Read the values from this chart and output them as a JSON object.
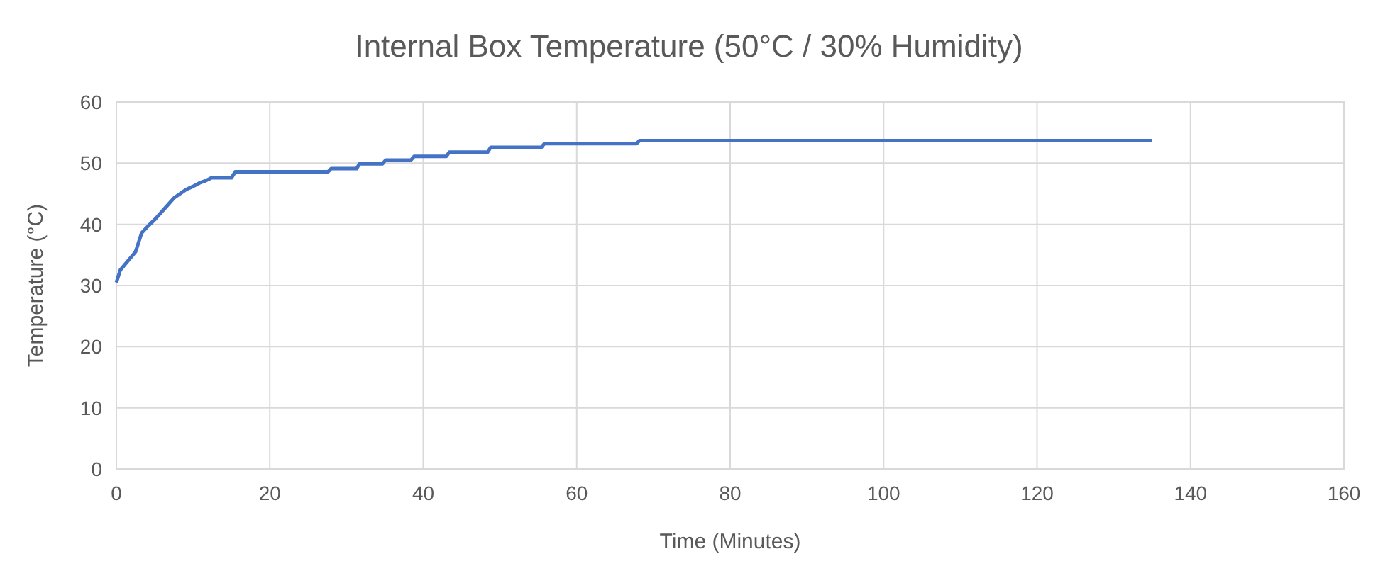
{
  "chart_data": {
    "type": "line",
    "title": "Internal Box Temperature (50°C / 30% Humidity)",
    "xlabel": "Time (Minutes)",
    "ylabel": "Temperature (°C)",
    "xlim": [
      0,
      160
    ],
    "xticks": [
      0,
      20,
      40,
      60,
      80,
      100,
      120,
      140,
      160
    ],
    "ylim": [
      0,
      60
    ],
    "yticks": [
      0,
      10,
      20,
      30,
      40,
      50,
      60
    ],
    "grid": true,
    "marker": "none",
    "line_style": "solid",
    "series": [
      {
        "color": "#4472c4",
        "x": [
          0,
          0.5,
          1.5,
          2.5,
          3.3,
          4.2,
          5.1,
          6.3,
          7.5,
          8.3,
          9.1,
          10,
          10.9,
          11.6,
          12.4,
          15,
          15.5,
          27.6,
          28,
          31.3,
          31.7,
          34.7,
          35.1,
          38.4,
          38.8,
          43,
          43.4,
          48.4,
          48.8,
          55.4,
          55.8,
          67.8,
          68.2,
          135
        ],
        "values": [
          30.5,
          32.5,
          34,
          35.5,
          38.6,
          39.8,
          40.9,
          42.6,
          44.3,
          45,
          45.7,
          46.2,
          46.8,
          47.1,
          47.6,
          47.6,
          48.6,
          48.6,
          49.1,
          49.1,
          49.9,
          49.9,
          50.5,
          50.5,
          51.1,
          51.1,
          51.8,
          51.8,
          52.6,
          52.6,
          53.2,
          53.2,
          53.7,
          53.7
        ]
      }
    ]
  }
}
